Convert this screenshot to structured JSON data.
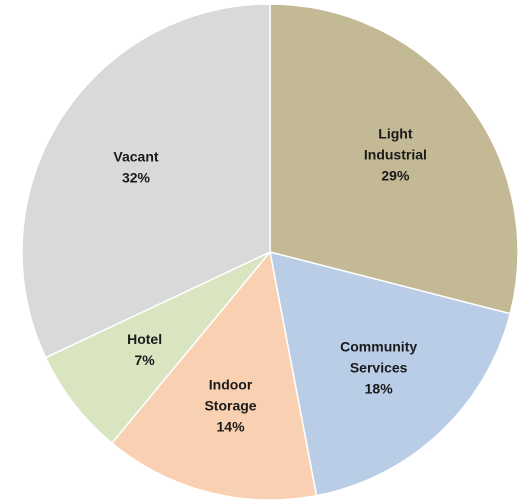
{
  "chart_data": {
    "type": "pie",
    "title": "",
    "slices": [
      {
        "label": "Light Industrial",
        "label_lines": [
          "Light",
          "Industrial"
        ],
        "value": 29,
        "display": "29%",
        "color": "#c4b995"
      },
      {
        "label": "Community Services",
        "label_lines": [
          "Community",
          "Services"
        ],
        "value": 18,
        "display": "18%",
        "color": "#b9cde6"
      },
      {
        "label": "Indoor Storage",
        "label_lines": [
          "Indoor",
          "Storage"
        ],
        "value": 14,
        "display": "14%",
        "color": "#f9d1b2"
      },
      {
        "label": "Hotel",
        "label_lines": [
          "Hotel"
        ],
        "value": 7,
        "display": "7%",
        "color": "#d8e5c0"
      },
      {
        "label": "Vacant",
        "label_lines": [
          "Vacant"
        ],
        "value": 32,
        "display": "32%",
        "color": "#d9d9d9"
      }
    ]
  }
}
